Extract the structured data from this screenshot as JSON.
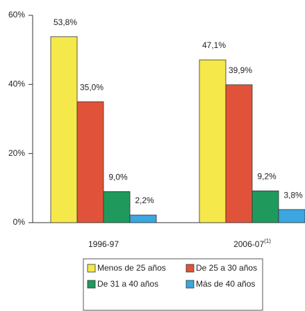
{
  "chart_data": {
    "type": "bar",
    "categories": [
      "1996-97",
      "2006-07"
    ],
    "footnote_mark": "(1)",
    "series": [
      {
        "name": "Menos de 25 años",
        "color": "#f5e84a",
        "values": [
          53.8,
          47.1
        ],
        "value_labels": [
          "53,8%",
          "47,1%"
        ]
      },
      {
        "name": "De 25 a 30 años",
        "color": "#e0533a",
        "values": [
          35.0,
          39.9
        ],
        "value_labels": [
          "35,0%",
          "39,9%"
        ]
      },
      {
        "name": "De 31 a 40 años",
        "color": "#1f9a5c",
        "values": [
          9.0,
          9.2
        ],
        "value_labels": [
          "9,0%",
          "9,2%"
        ]
      },
      {
        "name": "Más de 40 años",
        "color": "#3ba6df",
        "values": [
          2.2,
          3.8
        ],
        "value_labels": [
          "2,2%",
          "3,8%"
        ]
      }
    ],
    "ylim": [
      0,
      60
    ],
    "yticks": [
      {
        "value": 0,
        "label": "0%"
      },
      {
        "value": 20,
        "label": "20%"
      },
      {
        "value": 40,
        "label": "40%"
      },
      {
        "value": 60,
        "label": "60%"
      }
    ]
  }
}
